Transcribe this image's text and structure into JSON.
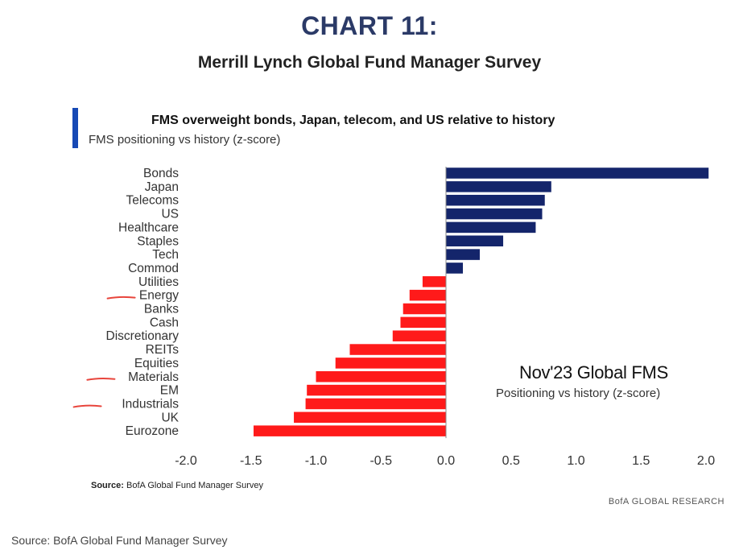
{
  "header": {
    "title": "CHART 11:",
    "subtitle": "Merrill Lynch Global Fund Manager Survey"
  },
  "panel": {
    "title": "FMS overweight bonds, Japan, telecom, and US relative to history",
    "subtitle": "FMS positioning vs history (z-score)"
  },
  "inset": {
    "title": "Nov'23 Global FMS",
    "subtitle": "Positioning vs history (z-score)"
  },
  "footer": {
    "source_label": "Source:",
    "source_text": "BofA Global Fund Manager Survey",
    "brand": "BofA GLOBAL RESEARCH",
    "outer_source": "Source: BofA Global Fund Manager Survey"
  },
  "colors": {
    "positive": "#14256b",
    "negative": "#ff1a1a",
    "accent": "#1749b5",
    "title": "#2b3a67",
    "annotation": "#e8453c"
  },
  "chart_data": {
    "type": "bar",
    "orientation": "horizontal",
    "categories": [
      "Bonds",
      "Japan",
      "Telecoms",
      "US",
      "Healthcare",
      "Staples",
      "Tech",
      "Commod",
      "Utilities",
      "Energy",
      "Banks",
      "Cash",
      "Discretionary",
      "REITs",
      "Equities",
      "Materials",
      "EM",
      "Industrials",
      "UK",
      "Eurozone"
    ],
    "values": [
      2.02,
      0.81,
      0.76,
      0.74,
      0.69,
      0.44,
      0.26,
      0.13,
      -0.18,
      -0.28,
      -0.33,
      -0.35,
      -0.41,
      -0.74,
      -0.85,
      -1.0,
      -1.07,
      -1.08,
      -1.17,
      -1.48
    ],
    "xlim": [
      -2.0,
      2.0
    ],
    "xticks": [
      "-2.0",
      "-1.5",
      "-1.0",
      "-0.5",
      "0.0",
      "0.5",
      "1.0",
      "1.5",
      "2.0"
    ],
    "xtick_values": [
      -2.0,
      -1.5,
      -1.0,
      -0.5,
      0.0,
      0.5,
      1.0,
      1.5,
      2.0
    ],
    "annotated_categories": [
      "Energy",
      "Materials",
      "Industrials"
    ],
    "grid": false,
    "legend": "none"
  }
}
